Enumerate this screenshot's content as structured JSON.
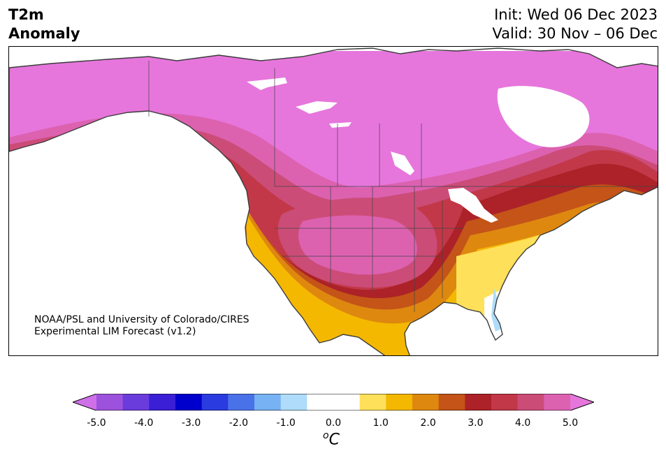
{
  "header": {
    "title_line1": "T2m",
    "title_line2": "Anomaly",
    "init": "Init: Wed 06 Dec 2023",
    "valid": "Valid: 30 Nov – 06 Dec"
  },
  "credit": {
    "line1": "NOAA/PSL and University of Colorado/CIRES",
    "line2": "Experimental LIM Forecast (v1.2)"
  },
  "colorbar": {
    "colors": [
      "#d070e8",
      "#9c52dc",
      "#6a3cdc",
      "#3a1fd6",
      "#0000cc",
      "#2a3ce0",
      "#4a72e8",
      "#76b2f4",
      "#aedcfa",
      "#ffffff",
      "#ffffff",
      "#ffe05a",
      "#f4b800",
      "#de8810",
      "#c45418",
      "#ac2228",
      "#c23848",
      "#cc4c78",
      "#dc62b0",
      "#e676dc"
    ],
    "ticks": [
      "-5.0",
      "-4.0",
      "-3.0",
      "-2.0",
      "-1.0",
      "0.0",
      "1.0",
      "2.0",
      "3.0",
      "4.0",
      "5.0"
    ],
    "unit_base": "C",
    "unit_sup": "o"
  },
  "map": {
    "land_color": "#e676dc",
    "ocean_color": "#ffffff",
    "coast_color": "#3c3c3c"
  }
}
